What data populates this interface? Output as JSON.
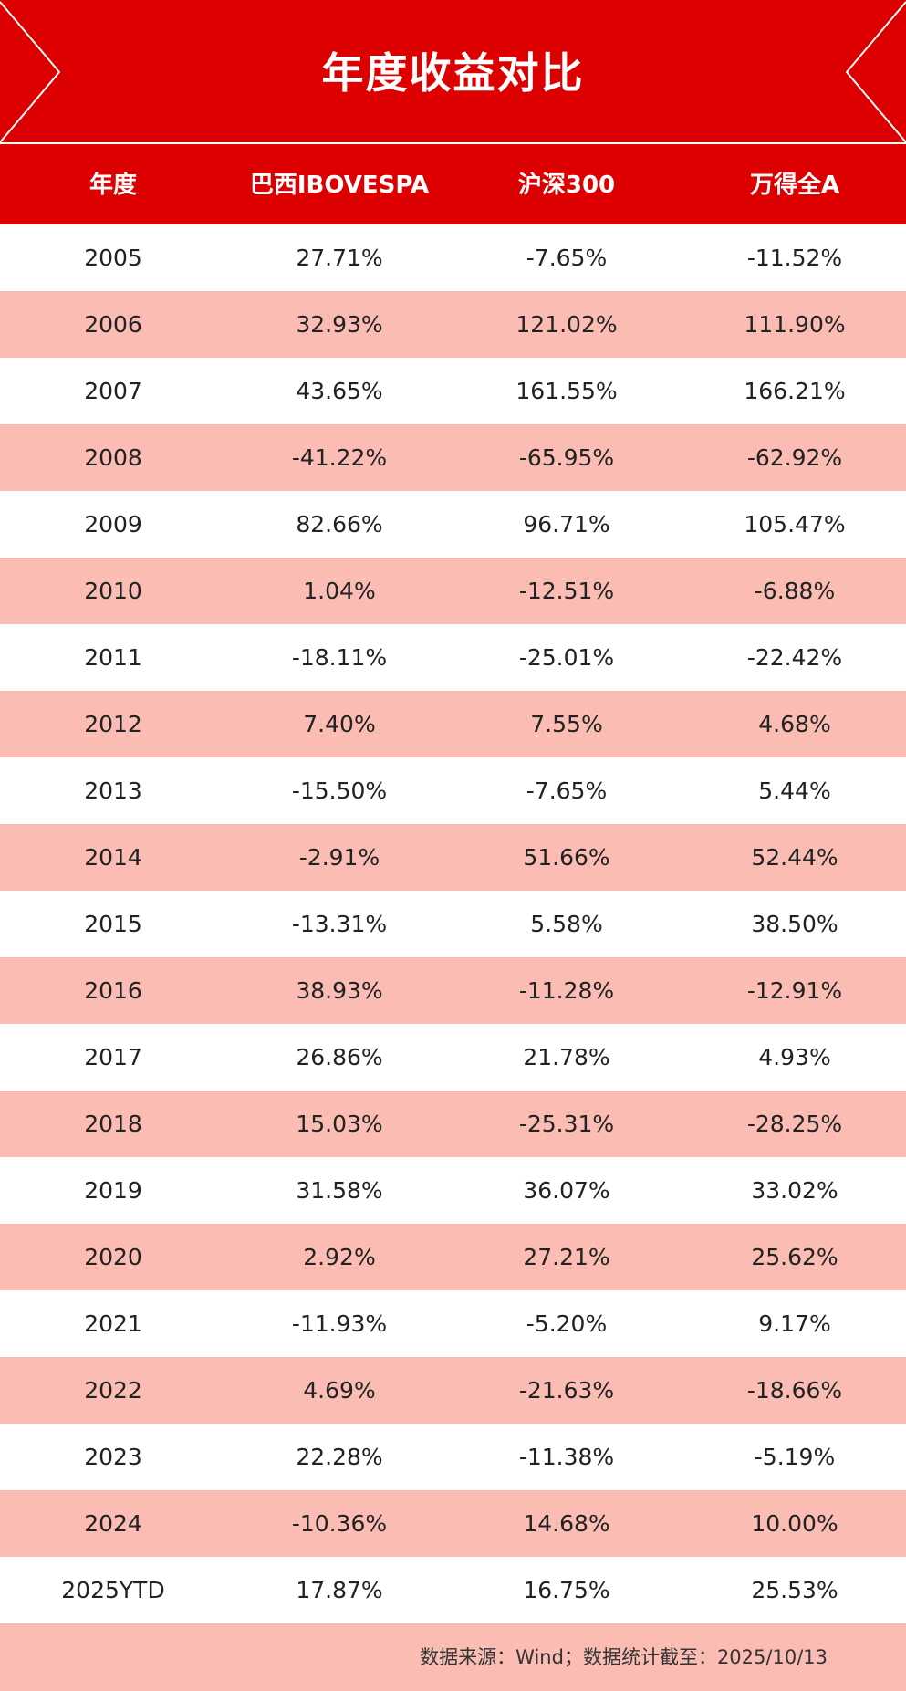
{
  "header": {
    "title": "年度收益对比"
  },
  "table": {
    "headers": [
      "年度",
      "巴西IBOVESPA",
      "沪深300",
      "万得全A"
    ],
    "rows": [
      [
        "2005",
        "27.71%",
        "-7.65%",
        "-11.52%"
      ],
      [
        "2006",
        "32.93%",
        "121.02%",
        "111.90%"
      ],
      [
        "2007",
        "43.65%",
        "161.55%",
        "166.21%"
      ],
      [
        "2008",
        "-41.22%",
        "-65.95%",
        "-62.92%"
      ],
      [
        "2009",
        "82.66%",
        "96.71%",
        "105.47%"
      ],
      [
        "2010",
        "1.04%",
        "-12.51%",
        "-6.88%"
      ],
      [
        "2011",
        "-18.11%",
        "-25.01%",
        "-22.42%"
      ],
      [
        "2012",
        "7.40%",
        "7.55%",
        "4.68%"
      ],
      [
        "2013",
        "-15.50%",
        "-7.65%",
        "5.44%"
      ],
      [
        "2014",
        "-2.91%",
        "51.66%",
        "52.44%"
      ],
      [
        "2015",
        "-13.31%",
        "5.58%",
        "38.50%"
      ],
      [
        "2016",
        "38.93%",
        "-11.28%",
        "-12.91%"
      ],
      [
        "2017",
        "26.86%",
        "21.78%",
        "4.93%"
      ],
      [
        "2018",
        "15.03%",
        "-25.31%",
        "-28.25%"
      ],
      [
        "2019",
        "31.58%",
        "36.07%",
        "33.02%"
      ],
      [
        "2020",
        "2.92%",
        "27.21%",
        "25.62%"
      ],
      [
        "2021",
        "-11.93%",
        "-5.20%",
        "9.17%"
      ],
      [
        "2022",
        "4.69%",
        "-21.63%",
        "-18.66%"
      ],
      [
        "2023",
        "22.28%",
        "-11.38%",
        "-5.19%"
      ],
      [
        "2024",
        "-10.36%",
        "14.68%",
        "10.00%"
      ],
      [
        "2025YTD",
        "17.87%",
        "16.75%",
        "25.53%"
      ]
    ]
  },
  "footer": {
    "source": "数据来源：Wind；数据统计截至：2025/10/13"
  }
}
